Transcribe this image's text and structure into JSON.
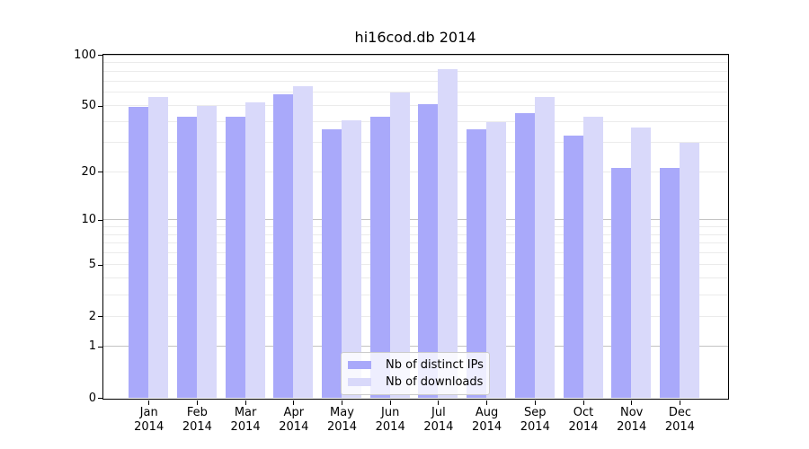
{
  "title": "hi16cod.db 2014",
  "chart_data": {
    "type": "bar",
    "title": "hi16cod.db 2014",
    "categories": [
      "Jan",
      "Feb",
      "Mar",
      "Apr",
      "May",
      "Jun",
      "Jul",
      "Aug",
      "Sep",
      "Oct",
      "Nov",
      "Dec"
    ],
    "category_year": "2014",
    "series": [
      {
        "name": "Nb of distinct IPs",
        "color": "#a9a9fa",
        "values": [
          49,
          43,
          43,
          58,
          36,
          43,
          51,
          36,
          45,
          33,
          21,
          21
        ]
      },
      {
        "name": "Nb of downloads",
        "color": "#d9d9fa",
        "values": [
          56,
          50,
          52,
          65,
          41,
          60,
          82,
          40,
          56,
          43,
          37,
          30
        ]
      }
    ],
    "y_scale": "log1p",
    "ylim": [
      0,
      100
    ],
    "y_ticks": [
      0,
      1,
      2,
      5,
      10,
      20,
      50,
      100
    ],
    "major_gridline_values": [
      1,
      10,
      100
    ],
    "grid": "horizontal",
    "legend_position": "inside-bottom-center",
    "colors": {
      "major_gridline": "#c3c3c3",
      "minor_gridline": "#ebebeb",
      "spine": "#000000",
      "background": "#ffffff",
      "legend_border": "#cccccc"
    }
  }
}
